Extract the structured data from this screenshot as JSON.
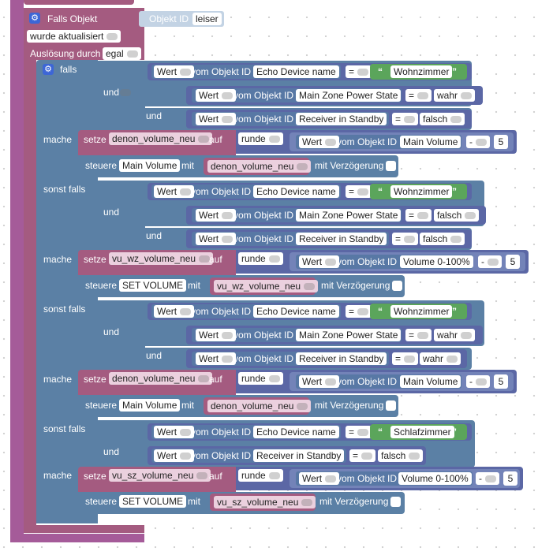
{
  "trigger": {
    "label": "Falls Objekt",
    "object_id_label": "Objekt ID",
    "object_id_value": "leiser",
    "event": "wurde aktualisiert",
    "trigger_label": "Auslösung durch",
    "trigger_value": "egal"
  },
  "kw": {
    "falls": "falls",
    "und": "und",
    "mache": "mache",
    "sonst_falls": "sonst falls",
    "wert": "Wert",
    "vom_objekt_id": "vom Objekt ID",
    "setze": "setze",
    "auf": "auf",
    "runde": "runde",
    "steuere": "steuere",
    "mit": "mit",
    "mit_verzoegerung": "mit Verzögerung",
    "eq": "=",
    "minus": "-",
    "quote_open": "“",
    "quote_close": "”"
  },
  "b1": {
    "c1": {
      "obj": "Echo Device name",
      "val": "Wohnzimmer"
    },
    "c2": {
      "obj": "Main Zone Power State",
      "val": "wahr"
    },
    "c3": {
      "obj": "Receiver in Standby",
      "val": "falsch"
    },
    "set_var": "denon_volume_neu",
    "obj": "Main Volume",
    "num": "5",
    "ctrl": "Main Volume",
    "ctrl_var": "denon_volume_neu"
  },
  "b2": {
    "c1": {
      "obj": "Echo Device name",
      "val": "Wohnzimmer"
    },
    "c2": {
      "obj": "Main Zone Power State",
      "val": "falsch"
    },
    "c3": {
      "obj": "Receiver in Standby",
      "val": "falsch"
    },
    "set_var": "vu_wz_volume_neu",
    "obj": "Volume 0-100%",
    "num": "5",
    "ctrl": "SET VOLUME",
    "ctrl_var": "vu_wz_volume_neu"
  },
  "b3": {
    "c1": {
      "obj": "Echo Device name",
      "val": "Wohnzimmer"
    },
    "c2": {
      "obj": "Main Zone Power State",
      "val": "wahr"
    },
    "c3": {
      "obj": "Receiver in Standby",
      "val": "wahr"
    },
    "set_var": "denon_volume_neu",
    "obj": "Main Volume",
    "num": "5",
    "ctrl": "Main Volume",
    "ctrl_var": "denon_volume_neu"
  },
  "b4": {
    "c1": {
      "obj": "Echo Device name",
      "val": "Schlafzimmer"
    },
    "c2": {
      "obj": "Receiver in Standby",
      "val": "falsch"
    },
    "set_var": "vu_sz_volume_neu",
    "obj": "Volume 0-100%",
    "num": "5",
    "ctrl": "SET VOLUME",
    "ctrl_var": "vu_sz_volume_neu"
  },
  "colors": {
    "event": "#a55b99",
    "logic": "#5b80a5",
    "variable": "#a55b80",
    "text": "#5ba55b",
    "math": "#5b67a5",
    "workspace": "#ffffff"
  }
}
